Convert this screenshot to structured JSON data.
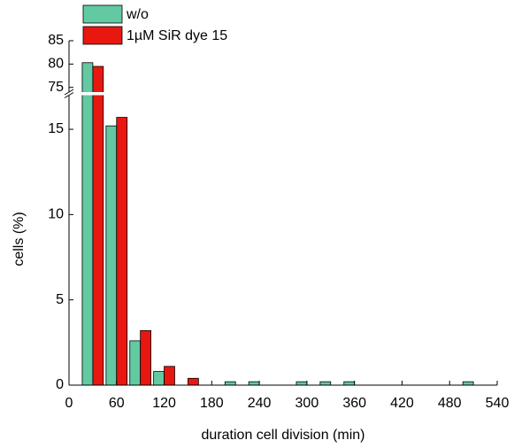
{
  "chart_data": {
    "type": "bar",
    "x_label": "duration cell division (min)",
    "y_label": "cells (%)",
    "x": [
      30,
      60,
      90,
      120,
      150,
      210,
      240,
      300,
      330,
      360,
      510
    ],
    "series": [
      {
        "name": "w/o",
        "color": "#62c9a2",
        "values": [
          80.3,
          15.2,
          2.6,
          0.8,
          0,
          0.2,
          0.2,
          0.2,
          0.2,
          0.2,
          0.2
        ]
      },
      {
        "name": "1µM SiR dye 15",
        "color": "#e8170f",
        "values": [
          79.5,
          15.7,
          3.2,
          1.1,
          0.4,
          0,
          0,
          0,
          0,
          0,
          0
        ]
      }
    ],
    "xlim": [
      0,
      540
    ],
    "xticks": [
      0,
      60,
      120,
      180,
      240,
      300,
      360,
      420,
      480,
      540
    ],
    "ylim": [
      0,
      85
    ],
    "ybreak": [
      17,
      74
    ],
    "yticks": [
      0,
      5,
      10,
      15,
      75,
      80,
      85
    ],
    "legend": "top-left"
  }
}
